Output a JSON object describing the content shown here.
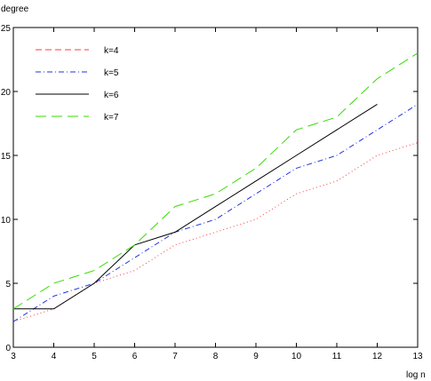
{
  "chart_data": {
    "type": "line",
    "xlabel": "log n",
    "ylabel": "degree",
    "xlim": [
      3,
      13
    ],
    "ylim": [
      0,
      25
    ],
    "xticks": [
      3,
      4,
      5,
      6,
      7,
      8,
      9,
      10,
      11,
      12,
      13
    ],
    "yticks": [
      0,
      5,
      10,
      15,
      20,
      25
    ],
    "grid": false,
    "legend_position": "top-left",
    "series": [
      {
        "name": "k=4",
        "color": "#ff3b3b",
        "legend_style": "dashed",
        "plot_style": "dotted",
        "x": [
          3,
          4,
          5,
          6,
          7,
          8,
          9,
          10,
          11,
          12,
          13
        ],
        "y": [
          2,
          3,
          5,
          6,
          8,
          9,
          10,
          12,
          13,
          15,
          16
        ]
      },
      {
        "name": "k=5",
        "color": "#2233dd",
        "legend_style": "dashdot",
        "plot_style": "dashdot",
        "x": [
          3,
          4,
          5,
          6,
          7,
          8,
          9,
          10,
          11,
          12,
          13
        ],
        "y": [
          2,
          4,
          5,
          7,
          9,
          10,
          12,
          14,
          15,
          17,
          19
        ]
      },
      {
        "name": "k=6",
        "color": "#000000",
        "legend_style": "solid",
        "plot_style": "solid",
        "x": [
          3,
          4,
          5,
          6,
          7,
          8,
          9,
          10,
          11,
          12
        ],
        "y": [
          3,
          3,
          5,
          8,
          9,
          11,
          13,
          15,
          17,
          19
        ]
      },
      {
        "name": "k=7",
        "color": "#33dd00",
        "legend_style": "longdash",
        "plot_style": "longdash",
        "x": [
          3,
          4,
          5,
          6,
          7,
          8,
          9,
          10,
          11,
          12,
          13
        ],
        "y": [
          3,
          5,
          6,
          8,
          11,
          12,
          14,
          17,
          18,
          21,
          23
        ]
      }
    ]
  }
}
